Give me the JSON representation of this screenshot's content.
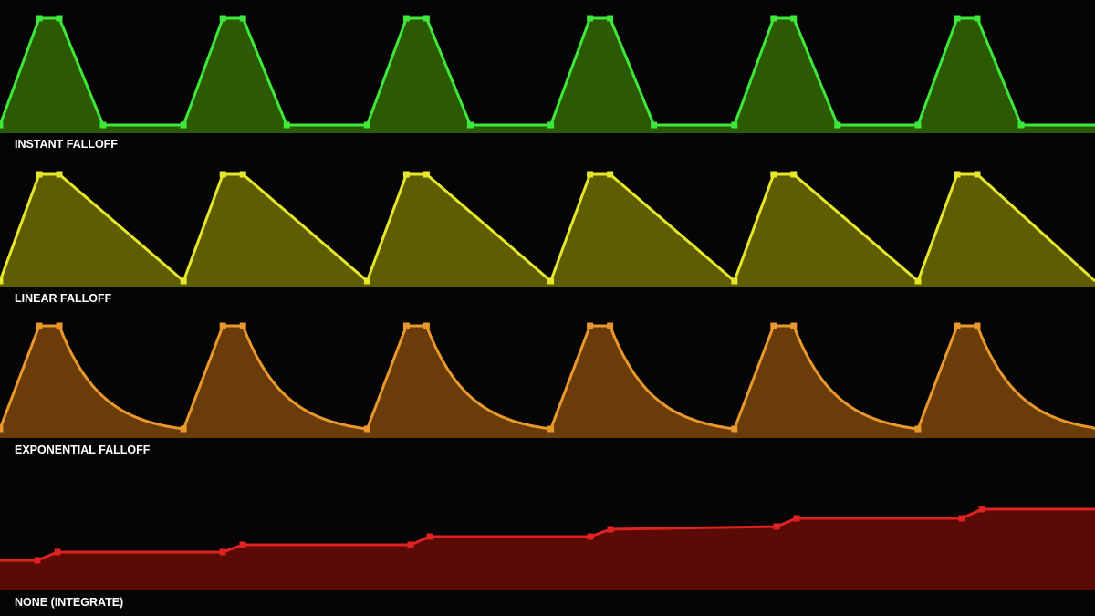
{
  "panels": [
    {
      "label": "INSTANT FALLOFF"
    },
    {
      "label": "LINEAR FALLOFF"
    },
    {
      "label": "EXPONENTIAL FALLOFF"
    },
    {
      "label": "NONE (INTEGRATE)"
    }
  ]
}
